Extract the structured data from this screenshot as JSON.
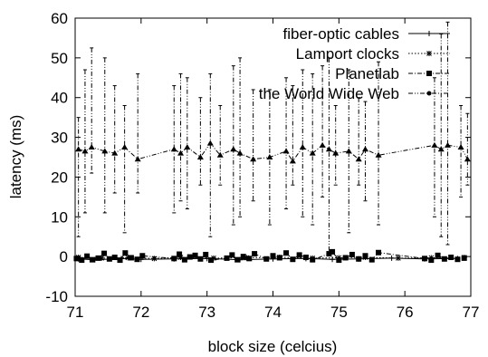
{
  "chart_data": {
    "type": "line",
    "xlabel": "block size (celcius)",
    "ylabel": "latency (ms)",
    "xlim": [
      71,
      77
    ],
    "ylim": [
      -10,
      60
    ],
    "x_ticks": [
      "71",
      "72",
      "73",
      "74",
      "75",
      "76",
      "77"
    ],
    "y_ticks": [
      "-10",
      "0",
      "10",
      "20",
      "30",
      "40",
      "50",
      "60"
    ],
    "grid": false,
    "legend_position": "top-right",
    "series": [
      {
        "name": "fiber-optic cables",
        "style": "solid",
        "marker": "plus",
        "x": [
          71.05,
          71.3,
          71.7,
          72.0,
          72.5,
          73.0,
          73.5,
          74.0,
          74.5,
          74.9,
          75.3,
          75.8,
          76.3,
          76.8
        ],
        "y": [
          -0.6,
          -0.8,
          -0.5,
          -0.7,
          -0.6,
          -0.5,
          -0.8,
          -0.6,
          -0.5,
          -0.7,
          -0.6,
          -0.4,
          -0.6,
          -0.5
        ]
      },
      {
        "name": "Lamport clocks",
        "style": "dotted",
        "marker": "star",
        "x": [
          71.05,
          71.4,
          71.8,
          72.2,
          72.6,
          73.1,
          73.6,
          74.1,
          74.6,
          75.0,
          75.4,
          75.9,
          76.4,
          76.9
        ],
        "y": [
          -0.2,
          -0.4,
          -0.3,
          -0.5,
          -0.2,
          -0.4,
          -0.3,
          -0.2,
          -0.4,
          -0.3,
          -0.2,
          -0.4,
          -0.3,
          -0.2
        ]
      },
      {
        "name": "Planetlab",
        "style": "dashdot",
        "marker": "square",
        "x": [
          71.02,
          71.1,
          71.18,
          71.26,
          71.35,
          71.44,
          71.52,
          71.6,
          71.68,
          71.76,
          71.85,
          71.94,
          72.02,
          72.5,
          72.58,
          72.66,
          72.74,
          72.82,
          72.9,
          72.98,
          73.06,
          73.3,
          73.38,
          73.46,
          73.55,
          73.64,
          73.72,
          73.9,
          74.0,
          74.1,
          74.2,
          74.3,
          74.4,
          74.5,
          74.6,
          74.85,
          74.9,
          75.0,
          75.1,
          75.2,
          75.3,
          75.4,
          75.5,
          75.6,
          76.3,
          76.4,
          76.5,
          76.6,
          76.7,
          76.8,
          76.9
        ],
        "y": [
          -0.5,
          -0.9,
          0.1,
          -0.8,
          -0.4,
          0.8,
          -0.6,
          -0.2,
          -0.9,
          0.9,
          -0.3,
          -0.7,
          0.2,
          -0.5,
          0.6,
          -0.8,
          -0.1,
          0.3,
          -0.6,
          0.5,
          -0.9,
          -0.4,
          0.4,
          -0.8,
          0.0,
          -0.5,
          0.7,
          -0.6,
          0.2,
          -0.3,
          0.9,
          -0.7,
          0.4,
          -0.2,
          -0.8,
          0.7,
          1.2,
          -0.9,
          -0.3,
          0.5,
          -0.6,
          0.2,
          -0.8,
          1.0,
          -0.5,
          -0.9,
          0.3,
          -0.6,
          -0.2,
          -0.7,
          -0.4
        ]
      },
      {
        "name": "the World Wide Web",
        "style": "dashdotdot",
        "marker": "circle",
        "x": [
          71.05,
          71.15,
          71.25,
          71.45,
          71.6,
          71.75,
          71.95,
          72.5,
          72.6,
          72.7,
          72.9,
          73.05,
          73.2,
          73.4,
          73.5,
          73.7,
          73.95,
          74.2,
          74.3,
          74.45,
          74.6,
          74.75,
          74.85,
          74.95,
          75.15,
          75.3,
          75.4,
          75.6,
          76.45,
          76.55,
          76.65,
          76.85,
          76.95
        ],
        "y": [
          27,
          26.5,
          27.5,
          26.5,
          26,
          27.5,
          24.5,
          27,
          26,
          27.5,
          25,
          28.5,
          25.5,
          27,
          26,
          24.5,
          25,
          26.5,
          24,
          27.5,
          26,
          28,
          27,
          26,
          26.5,
          24.5,
          27,
          25.5,
          28,
          27,
          28,
          27.5,
          24.5
        ],
        "err_high": [
          35,
          47,
          52.5,
          50,
          43,
          38,
          46,
          43,
          46,
          45,
          40,
          46,
          38,
          48,
          50,
          42,
          42,
          45,
          43,
          47,
          46,
          48,
          50,
          38,
          47,
          40,
          39,
          49,
          45,
          56,
          59,
          38,
          36
        ],
        "err_low": [
          5,
          11,
          21,
          11,
          16,
          6,
          16,
          11,
          14,
          12,
          18,
          5,
          18,
          8,
          10,
          14,
          8,
          12,
          18,
          10,
          8,
          15,
          1,
          18,
          6,
          18,
          14,
          8,
          10,
          5,
          3,
          15,
          18
        ]
      }
    ]
  }
}
